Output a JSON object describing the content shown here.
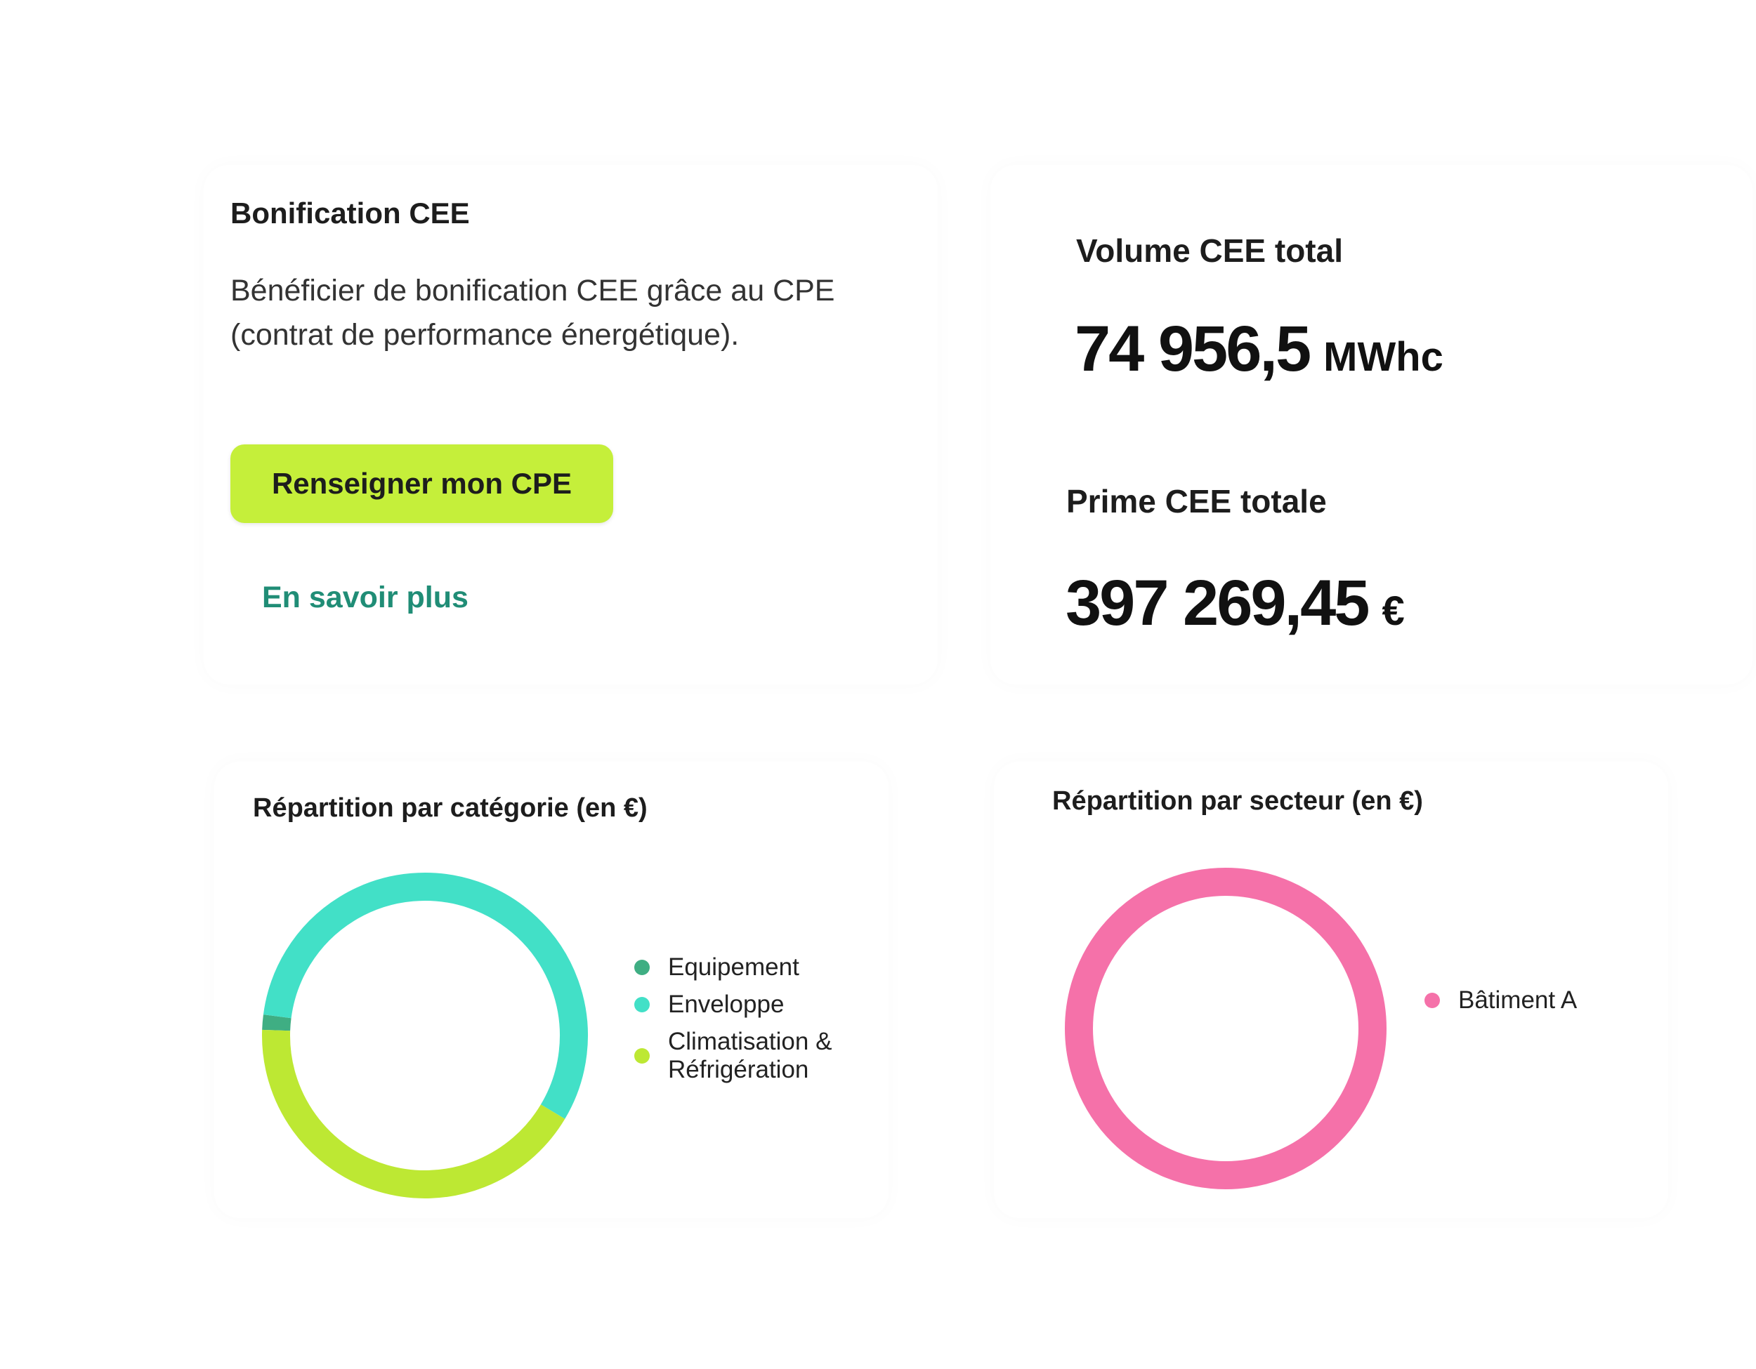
{
  "bonification": {
    "title": "Bonification CEE",
    "description": "Bénéficier de bonification CEE grâce au CPE (contrat de performance énergétique).",
    "button_label": "Renseigner mon CPE",
    "link_label": "En savoir plus"
  },
  "totals": {
    "volume_label": "Volume CEE total",
    "volume_value": "74 956,5",
    "volume_unit": "MWhc",
    "prime_label": "Prime CEE totale",
    "prime_value": "397 269,45",
    "prime_unit": "€"
  },
  "chart_data": [
    {
      "type": "pie",
      "title": "Répartition par catégorie (en €)",
      "categories": [
        "Equipement",
        "Enveloppe",
        "Climatisation &\nRéfrigération"
      ],
      "values": [
        1.5,
        56.5,
        42
      ],
      "colors": [
        "#3fae83",
        "#42e0c7",
        "#bde833"
      ],
      "legend": "right"
    },
    {
      "type": "pie",
      "title": "Répartition par secteur (en €)",
      "categories": [
        "Bâtiment A"
      ],
      "values": [
        100
      ],
      "colors": [
        "#f571a9"
      ],
      "legend": "right"
    }
  ]
}
